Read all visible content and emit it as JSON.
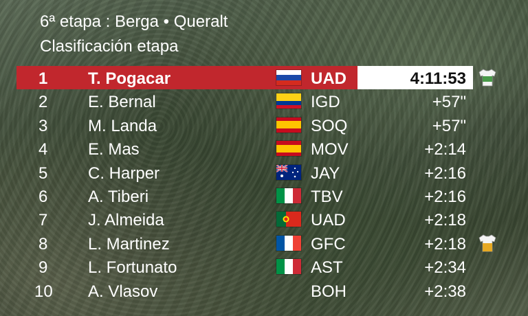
{
  "header": {
    "stage": "6ª etapa : Berga • Queralt",
    "subtitle": "Clasificación etapa"
  },
  "results": [
    {
      "pos": "1",
      "name": "T. Pogacar",
      "flag": "slovenia-flag",
      "team": "UAD",
      "time": "4:11:53",
      "jersey": "green-jersey"
    },
    {
      "pos": "2",
      "name": "E. Bernal",
      "flag": "colombia-flag",
      "team": "IGD",
      "time": "+57\""
    },
    {
      "pos": "3",
      "name": "M. Landa",
      "flag": "spain-flag",
      "team": "SOQ",
      "time": "+57\""
    },
    {
      "pos": "4",
      "name": "E. Mas",
      "flag": "spain-flag",
      "team": "MOV",
      "time": "+2:14"
    },
    {
      "pos": "5",
      "name": "C. Harper",
      "flag": "australia-flag",
      "team": "JAY",
      "time": "+2:16"
    },
    {
      "pos": "6",
      "name": "A. Tiberi",
      "flag": "italy-flag",
      "team": "TBV",
      "time": "+2:16"
    },
    {
      "pos": "7",
      "name": "J. Almeida",
      "flag": "portugal-flag",
      "team": "UAD",
      "time": "+2:18"
    },
    {
      "pos": "8",
      "name": "L. Martinez",
      "flag": "france-flag",
      "team": "GFC",
      "time": "+2:18",
      "jersey": "yellow-jersey"
    },
    {
      "pos": "9",
      "name": "L. Fortunato",
      "flag": "italy-flag",
      "team": "AST",
      "time": "+2:34"
    },
    {
      "pos": "10",
      "name": "A. Vlasov",
      "flag": "",
      "team": "BOH",
      "time": "+2:38"
    }
  ],
  "colors": {
    "leader_bar": "#c1272d",
    "text": "#ffffff"
  }
}
